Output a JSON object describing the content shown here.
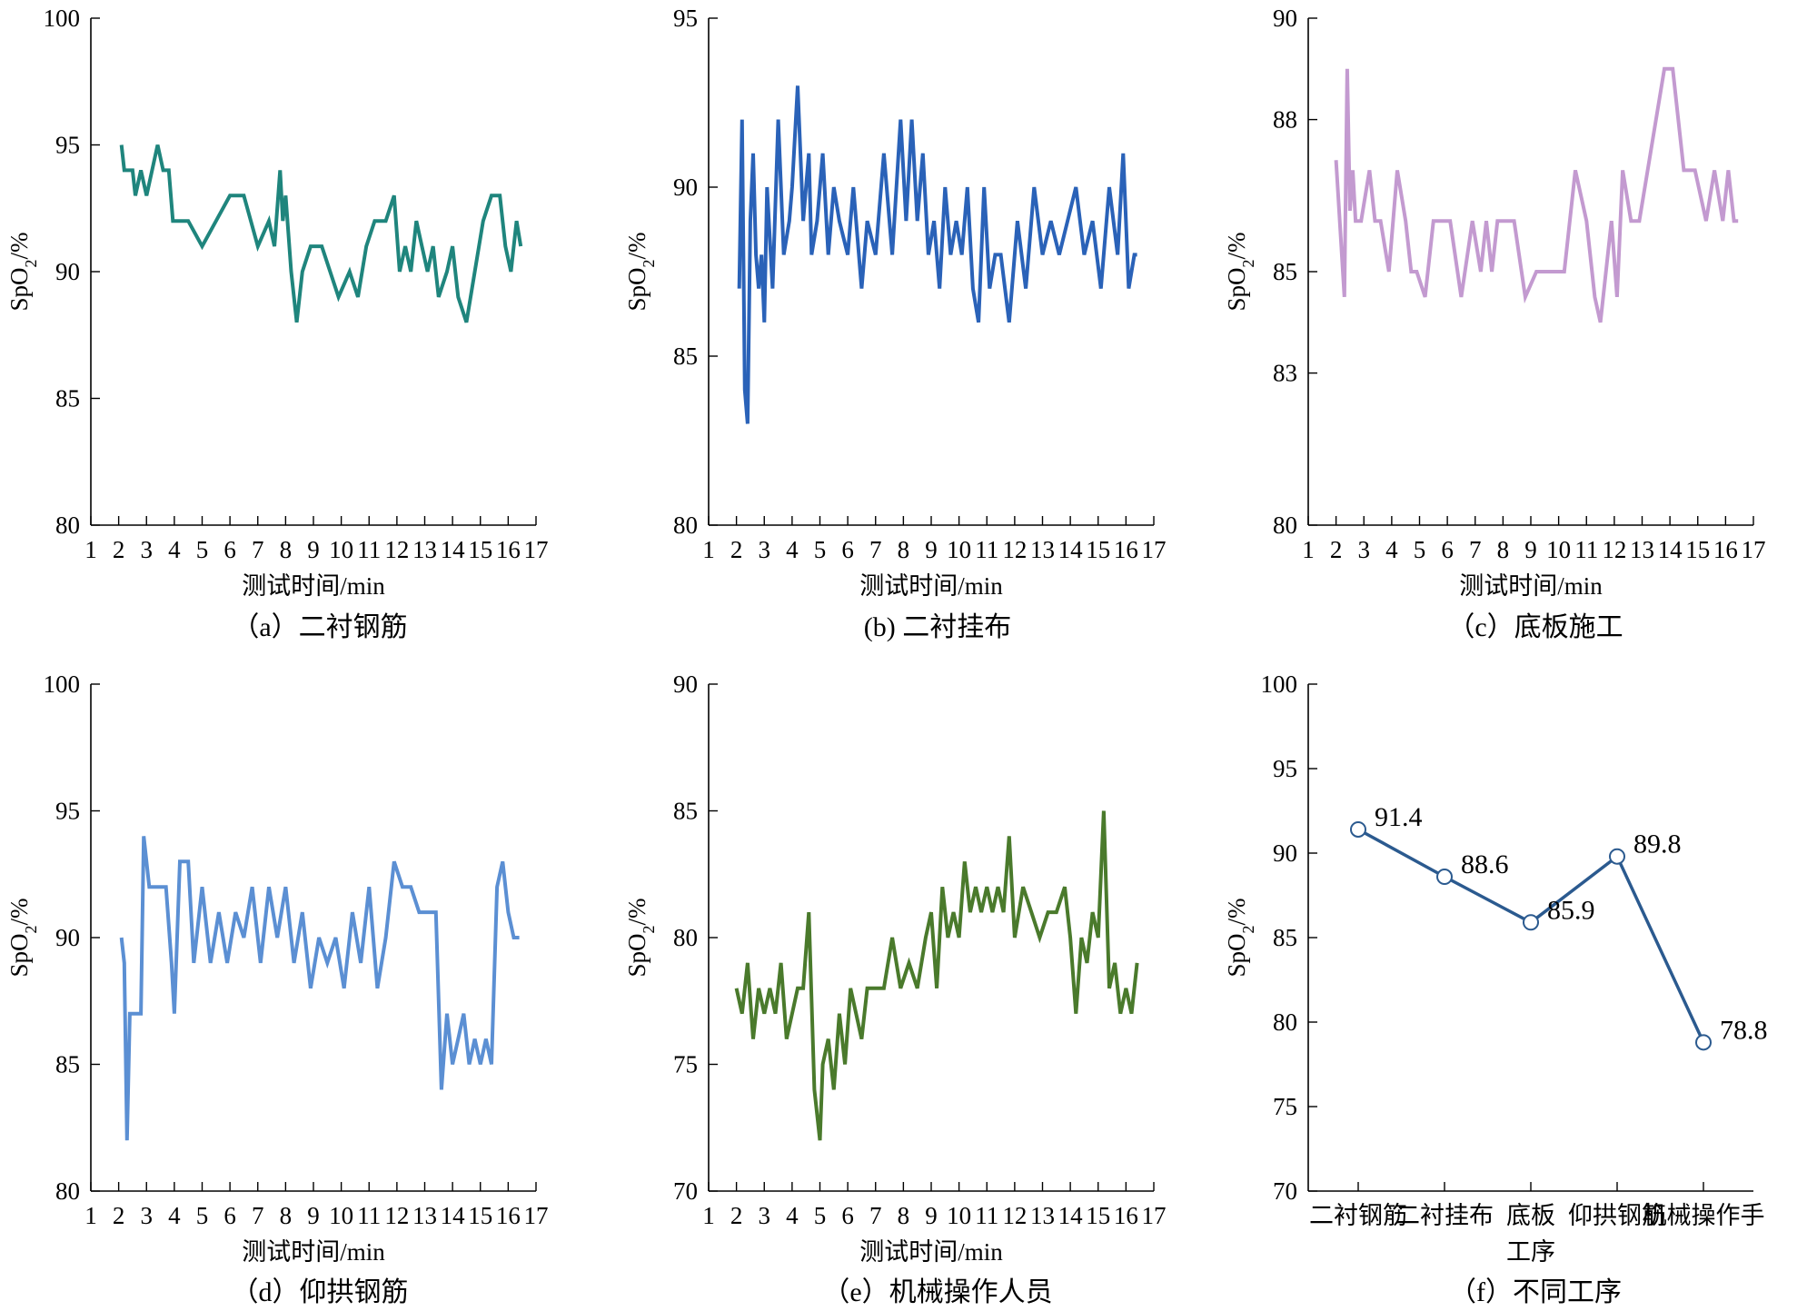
{
  "figure": {
    "panels": [
      {
        "caption": "（a）二衬钢筋"
      },
      {
        "caption": "(b) 二衬挂布"
      },
      {
        "caption": "（c）底板施工"
      },
      {
        "caption": "（d）仰拱钢筋"
      },
      {
        "caption": "（e）机械操作人员"
      },
      {
        "caption": "（f）不同工序"
      }
    ]
  },
  "chart_data": [
    {
      "type": "line",
      "title": "（a）二衬钢筋",
      "xlabel": "测试时间/min",
      "ylabel": "SpO2/%",
      "xlim": [
        1,
        17
      ],
      "ylim": [
        80,
        100
      ],
      "xticks": [
        1,
        2,
        3,
        4,
        5,
        6,
        7,
        8,
        9,
        10,
        11,
        12,
        13,
        14,
        15,
        16,
        17
      ],
      "yticks": [
        80,
        85,
        90,
        95,
        100
      ],
      "color": "#1f857d",
      "series": [
        {
          "x": [
            2.1,
            2.2,
            2.5,
            2.6,
            2.8,
            3.0,
            3.2,
            3.4,
            3.6,
            3.8,
            3.95,
            4.0,
            4.5,
            5.0,
            5.5,
            6.0,
            6.5,
            7.0,
            7.4,
            7.6,
            7.8,
            7.9,
            8.0,
            8.2,
            8.4,
            8.6,
            8.9,
            9.3,
            9.6,
            9.9,
            10.3,
            10.6,
            10.9,
            11.2,
            11.6,
            11.9,
            12.1,
            12.3,
            12.5,
            12.7,
            12.9,
            13.1,
            13.3,
            13.5,
            13.8,
            14.0,
            14.2,
            14.5,
            14.8,
            15.1,
            15.4,
            15.7,
            15.9,
            16.1,
            16.3,
            16.45
          ],
          "y": [
            95,
            94,
            94,
            93,
            94,
            93,
            94,
            95,
            94,
            94,
            92,
            92,
            92,
            91,
            92,
            93,
            93,
            91,
            92,
            91,
            94,
            92,
            93,
            90,
            88,
            90,
            91,
            91,
            90,
            89,
            90,
            89,
            91,
            92,
            92,
            93,
            90,
            91,
            90,
            92,
            91,
            90,
            91,
            89,
            90,
            91,
            89,
            88,
            90,
            92,
            93,
            93,
            91,
            90,
            92,
            91
          ]
        }
      ]
    },
    {
      "type": "line",
      "title": "(b) 二衬挂布",
      "xlabel": "测试时间/min",
      "ylabel": "SpO2/%",
      "xlim": [
        1,
        17
      ],
      "ylim": [
        80,
        95
      ],
      "xticks": [
        1,
        2,
        3,
        4,
        5,
        6,
        7,
        8,
        9,
        10,
        11,
        12,
        13,
        14,
        15,
        16,
        17
      ],
      "yticks": [
        80,
        85,
        90,
        95
      ],
      "color": "#2a62b8",
      "series": [
        {
          "x": [
            2.1,
            2.2,
            2.3,
            2.4,
            2.5,
            2.6,
            2.7,
            2.8,
            2.9,
            3.0,
            3.1,
            3.3,
            3.5,
            3.7,
            3.9,
            4.0,
            4.2,
            4.4,
            4.6,
            4.7,
            4.9,
            5.1,
            5.3,
            5.5,
            5.7,
            6.0,
            6.2,
            6.5,
            6.7,
            7.0,
            7.3,
            7.6,
            7.9,
            8.1,
            8.3,
            8.5,
            8.7,
            8.9,
            9.1,
            9.3,
            9.5,
            9.7,
            9.9,
            10.1,
            10.3,
            10.5,
            10.7,
            10.9,
            11.1,
            11.3,
            11.5,
            11.8,
            12.1,
            12.4,
            12.7,
            13.0,
            13.3,
            13.6,
            13.9,
            14.2,
            14.5,
            14.8,
            15.1,
            15.4,
            15.7,
            15.9,
            16.1,
            16.3,
            16.4
          ],
          "y": [
            87,
            92,
            84,
            83,
            89,
            91,
            88,
            87,
            88,
            86,
            90,
            87,
            92,
            88,
            89,
            90,
            93,
            89,
            91,
            88,
            89,
            91,
            88,
            90,
            89,
            88,
            90,
            87,
            89,
            88,
            91,
            88,
            92,
            89,
            92,
            89,
            91,
            88,
            89,
            87,
            90,
            88,
            89,
            88,
            90,
            87,
            86,
            90,
            87,
            88,
            88,
            86,
            89,
            87,
            90,
            88,
            89,
            88,
            89,
            90,
            88,
            89,
            87,
            90,
            88,
            91,
            87,
            88,
            88
          ]
        }
      ]
    },
    {
      "type": "line",
      "title": "（c）底板施工",
      "xlabel": "测试时间/min",
      "ylabel": "SpO2/%",
      "xlim": [
        1,
        17
      ],
      "ylim": [
        80,
        90
      ],
      "xticks": [
        1,
        2,
        3,
        4,
        5,
        6,
        7,
        8,
        9,
        10,
        11,
        12,
        13,
        14,
        15,
        16,
        17
      ],
      "yticks": [
        80,
        83,
        85,
        88,
        90
      ],
      "color": "#c39ad0",
      "series": [
        {
          "x": [
            2.0,
            2.3,
            2.4,
            2.5,
            2.6,
            2.7,
            2.9,
            3.2,
            3.4,
            3.6,
            3.9,
            4.2,
            4.5,
            4.7,
            4.9,
            5.2,
            5.5,
            5.8,
            6.1,
            6.5,
            6.9,
            7.2,
            7.4,
            7.6,
            7.8,
            8.0,
            8.4,
            8.8,
            9.2,
            9.5,
            9.8,
            10.2,
            10.6,
            11.0,
            11.3,
            11.5,
            11.7,
            11.9,
            12.1,
            12.3,
            12.6,
            12.9,
            13.2,
            13.5,
            13.8,
            14.1,
            14.5,
            14.9,
            15.3,
            15.6,
            15.9,
            16.1,
            16.3,
            16.45
          ],
          "y": [
            87.2,
            84.5,
            89.0,
            86.2,
            87.0,
            86.0,
            86.0,
            87.0,
            86.0,
            86.0,
            85.0,
            87.0,
            86.0,
            85.0,
            85.0,
            84.5,
            86.0,
            86.0,
            86.0,
            84.5,
            86.0,
            85.0,
            86.0,
            85.0,
            86.0,
            86.0,
            86.0,
            84.5,
            85.0,
            85.0,
            85.0,
            85.0,
            87.0,
            86.0,
            84.5,
            84.0,
            85.0,
            86.0,
            84.5,
            87.0,
            86.0,
            86.0,
            87.0,
            88.0,
            89.0,
            89.0,
            87.0,
            87.0,
            86.0,
            87.0,
            86.0,
            87.0,
            86.0,
            86.0
          ]
        }
      ]
    },
    {
      "type": "line",
      "title": "（d）仰拱钢筋",
      "xlabel": "测试时间/min",
      "ylabel": "SpO2/%",
      "xlim": [
        1,
        17
      ],
      "ylim": [
        80,
        100
      ],
      "xticks": [
        1,
        2,
        3,
        4,
        5,
        6,
        7,
        8,
        9,
        10,
        11,
        12,
        13,
        14,
        15,
        16,
        17
      ],
      "yticks": [
        80,
        85,
        90,
        95,
        100
      ],
      "color": "#5b8fd3",
      "series": [
        {
          "x": [
            2.1,
            2.2,
            2.3,
            2.4,
            2.6,
            2.8,
            2.9,
            3.1,
            3.4,
            3.7,
            3.9,
            4.0,
            4.2,
            4.5,
            4.7,
            5.0,
            5.3,
            5.6,
            5.9,
            6.2,
            6.5,
            6.8,
            7.1,
            7.4,
            7.7,
            8.0,
            8.3,
            8.6,
            8.9,
            9.2,
            9.5,
            9.8,
            10.1,
            10.4,
            10.7,
            11.0,
            11.3,
            11.6,
            11.9,
            12.2,
            12.5,
            12.8,
            13.1,
            13.4,
            13.6,
            13.8,
            14.0,
            14.2,
            14.4,
            14.6,
            14.8,
            15.0,
            15.2,
            15.4,
            15.6,
            15.8,
            16.0,
            16.2,
            16.4
          ],
          "y": [
            90,
            89,
            82,
            87,
            87,
            87,
            94,
            92,
            92,
            92,
            89,
            87,
            93,
            93,
            89,
            92,
            89,
            91,
            89,
            91,
            90,
            92,
            89,
            92,
            90,
            92,
            89,
            91,
            88,
            90,
            89,
            90,
            88,
            91,
            89,
            92,
            88,
            90,
            93,
            92,
            92,
            91,
            91,
            91,
            84,
            87,
            85,
            86,
            87,
            85,
            86,
            85,
            86,
            85,
            92,
            93,
            91,
            90,
            90
          ]
        }
      ]
    },
    {
      "type": "line",
      "title": "（e）机械操作人员",
      "xlabel": "测试时间/min",
      "ylabel": "SpO2/%",
      "xlim": [
        1,
        17
      ],
      "ylim": [
        70,
        90
      ],
      "xticks": [
        1,
        2,
        3,
        4,
        5,
        6,
        7,
        8,
        9,
        10,
        11,
        12,
        13,
        14,
        15,
        16,
        17
      ],
      "yticks": [
        70,
        75,
        80,
        85,
        90
      ],
      "color": "#4a7a2c",
      "series": [
        {
          "x": [
            2.0,
            2.2,
            2.4,
            2.6,
            2.8,
            3.0,
            3.2,
            3.4,
            3.6,
            3.8,
            4.0,
            4.2,
            4.4,
            4.6,
            4.8,
            5.0,
            5.1,
            5.3,
            5.5,
            5.7,
            5.9,
            6.1,
            6.3,
            6.5,
            6.7,
            7.0,
            7.3,
            7.6,
            7.9,
            8.2,
            8.5,
            8.8,
            9.0,
            9.2,
            9.4,
            9.6,
            9.8,
            10.0,
            10.2,
            10.4,
            10.6,
            10.8,
            11.0,
            11.2,
            11.4,
            11.6,
            11.8,
            12.0,
            12.3,
            12.6,
            12.9,
            13.2,
            13.5,
            13.8,
            14.0,
            14.2,
            14.4,
            14.6,
            14.8,
            15.0,
            15.2,
            15.4,
            15.6,
            15.8,
            16.0,
            16.2,
            16.4
          ],
          "y": [
            78,
            77,
            79,
            76,
            78,
            77,
            78,
            77,
            79,
            76,
            77,
            78,
            78,
            81,
            74,
            72,
            75,
            76,
            74,
            77,
            75,
            78,
            77,
            76,
            78,
            78,
            78,
            80,
            78,
            79,
            78,
            80,
            81,
            78,
            82,
            80,
            81,
            80,
            83,
            81,
            82,
            81,
            82,
            81,
            82,
            81,
            84,
            80,
            82,
            81,
            80,
            81,
            81,
            82,
            80,
            77,
            80,
            79,
            81,
            80,
            85,
            78,
            79,
            77,
            78,
            77,
            79
          ]
        }
      ]
    },
    {
      "type": "line",
      "title": "（f）不同工序",
      "xlabel": "工序",
      "ylabel": "SpO2/%",
      "categories": [
        "二衬钢筋",
        "二衬挂布",
        "底板",
        "仰拱钢筋",
        "机械操作手"
      ],
      "values": [
        91.4,
        88.6,
        85.9,
        89.8,
        78.8
      ],
      "data_labels": [
        "91.4",
        "88.6",
        "85.9",
        "89.8",
        "78.8"
      ],
      "ylim": [
        70,
        100
      ],
      "yticks": [
        70,
        75,
        80,
        85,
        90,
        95,
        100
      ],
      "color": "#2b5a8f",
      "marker": "open-circle"
    }
  ]
}
